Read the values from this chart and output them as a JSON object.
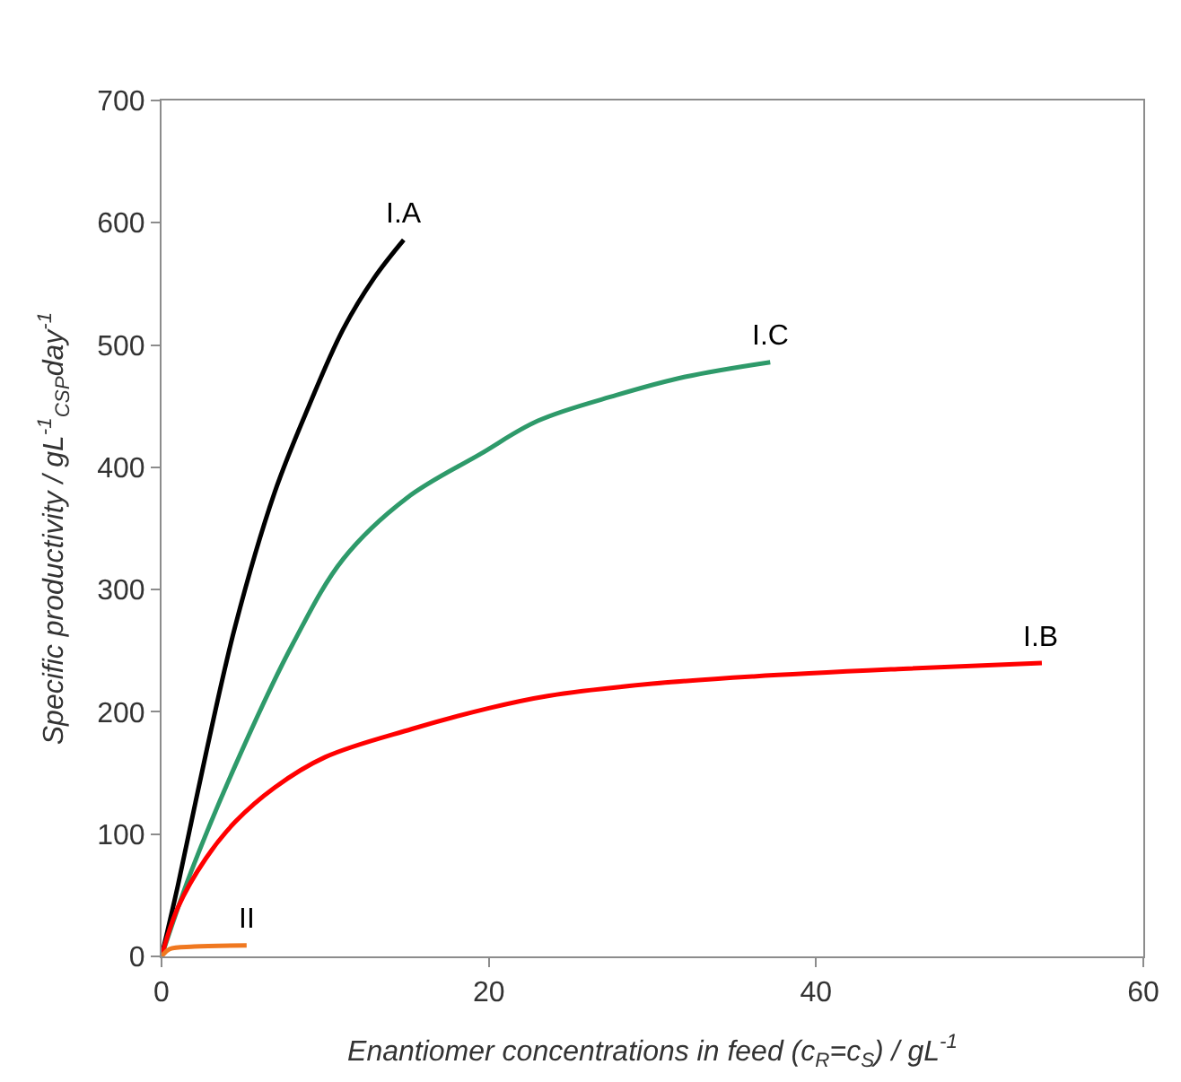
{
  "chart_data": {
    "type": "line",
    "xlabel": "Enantiomer concentrations in feed (c$_{R}$=c$_{S}$) / gL$^{-1}$",
    "ylabel": "Specific productivity / gL$^{-1}$$_{CSP}$day$^{-1}$",
    "xlim": [
      0,
      60
    ],
    "xticks": [
      0,
      20,
      40,
      60
    ],
    "ylim": [
      0,
      700
    ],
    "yticks": [
      0,
      100,
      200,
      300,
      400,
      500,
      600,
      700
    ],
    "legend": false,
    "marker": "none",
    "line_style": "solid",
    "series": [
      {
        "name": "I.A",
        "color": "#000000",
        "x": [
          0,
          1.0,
          2.7,
          4.5,
          6.9,
          9,
          11.1,
          13,
          14.8
        ],
        "values": [
          0,
          58,
          165,
          270,
          379,
          450,
          513,
          555,
          586
        ]
      },
      {
        "name": "I.C",
        "color": "#2e9a6a",
        "x": [
          0,
          1.8,
          4.8,
          8,
          11.1,
          15,
          19.5,
          23,
          27.8,
          32,
          37.2
        ],
        "values": [
          0,
          69,
          165,
          255,
          325,
          375,
          411,
          438,
          459,
          474,
          486
        ]
      },
      {
        "name": "I.B",
        "color": "#ff0000",
        "x": [
          0,
          1,
          2.7,
          4.5,
          6.9,
          10,
          15.3,
          20,
          23.6,
          30,
          36.2,
          45,
          53.8
        ],
        "values": [
          0,
          40,
          80,
          110,
          138,
          163,
          186,
          203,
          213,
          223,
          229,
          235,
          240
        ]
      },
      {
        "name": "II",
        "color": "#f07820",
        "x": [
          0,
          0.5,
          2,
          5.2
        ],
        "values": [
          0,
          6,
          8,
          9
        ]
      }
    ]
  }
}
